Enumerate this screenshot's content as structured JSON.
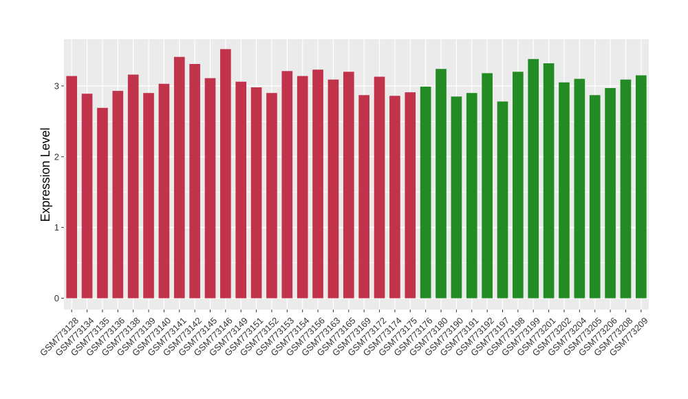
{
  "chart_data": {
    "type": "bar",
    "title": "",
    "xlabel": "",
    "ylabel": "Expression Level",
    "ylim": [
      -0.16,
      3.66
    ],
    "yticks": [
      0,
      1,
      2,
      3
    ],
    "grid": true,
    "legend": "none",
    "colors": {
      "group1": "#c1334b",
      "group2": "#238b23",
      "panel_bg": "#ebebeb",
      "grid": "#ffffff"
    },
    "categories": [
      "GSM773128",
      "GSM773134",
      "GSM773135",
      "GSM773136",
      "GSM773138",
      "GSM773139",
      "GSM773140",
      "GSM773141",
      "GSM773142",
      "GSM773145",
      "GSM773146",
      "GSM773149",
      "GSM773151",
      "GSM773152",
      "GSM773153",
      "GSM773154",
      "GSM773156",
      "GSM773163",
      "GSM773165",
      "GSM773169",
      "GSM773172",
      "GSM773174",
      "GSM773175",
      "GSM773176",
      "GSM773180",
      "GSM773190",
      "GSM773191",
      "GSM773192",
      "GSM773197",
      "GSM773198",
      "GSM773199",
      "GSM773201",
      "GSM773202",
      "GSM773204",
      "GSM773205",
      "GSM773206",
      "GSM773208",
      "GSM773209"
    ],
    "values": [
      3.14,
      2.89,
      2.69,
      2.93,
      3.16,
      2.9,
      3.03,
      3.41,
      3.31,
      3.11,
      3.52,
      3.06,
      2.98,
      2.9,
      3.21,
      3.14,
      3.23,
      3.09,
      3.2,
      2.87,
      3.13,
      2.86,
      2.91,
      2.99,
      3.24,
      2.85,
      2.9,
      3.18,
      2.78,
      3.2,
      3.38,
      3.32,
      3.05,
      3.1,
      2.87,
      2.97,
      3.09,
      3.15
    ],
    "groups": [
      1,
      1,
      1,
      1,
      1,
      1,
      1,
      1,
      1,
      1,
      1,
      1,
      1,
      1,
      1,
      1,
      1,
      1,
      1,
      1,
      1,
      1,
      1,
      2,
      2,
      2,
      2,
      2,
      2,
      2,
      2,
      2,
      2,
      2,
      2,
      2,
      2,
      2
    ]
  }
}
